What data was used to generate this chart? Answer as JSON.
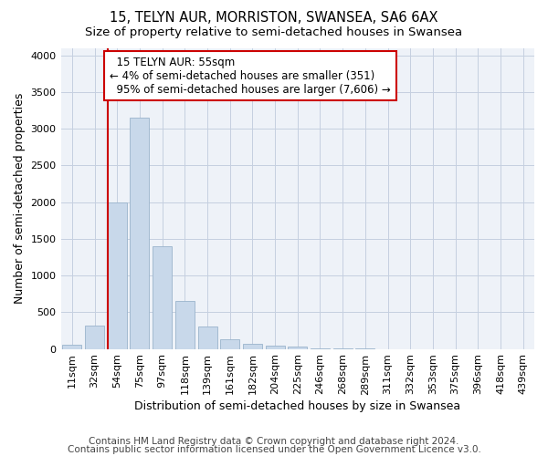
{
  "title": "15, TELYN AUR, MORRISTON, SWANSEA, SA6 6AX",
  "subtitle": "Size of property relative to semi-detached houses in Swansea",
  "xlabel": "Distribution of semi-detached houses by size in Swansea",
  "ylabel": "Number of semi-detached properties",
  "categories": [
    "11sqm",
    "32sqm",
    "54sqm",
    "75sqm",
    "97sqm",
    "118sqm",
    "139sqm",
    "161sqm",
    "182sqm",
    "204sqm",
    "225sqm",
    "246sqm",
    "268sqm",
    "289sqm",
    "311sqm",
    "332sqm",
    "353sqm",
    "375sqm",
    "396sqm",
    "418sqm",
    "439sqm"
  ],
  "values": [
    55,
    320,
    2000,
    3150,
    1400,
    650,
    300,
    130,
    70,
    50,
    30,
    8,
    3,
    1,
    0,
    0,
    0,
    0,
    0,
    0,
    0
  ],
  "bar_color": "#c8d8ea",
  "bar_edgecolor": "#9ab4cc",
  "highlight_bar_index": 2,
  "highlight_label": "15 TELYN AUR: 55sqm",
  "pct_smaller": "4%",
  "n_smaller": "351",
  "pct_larger": "95%",
  "n_larger": "7,606",
  "redline_color": "#cc0000",
  "annotation_box_edgecolor": "#cc0000",
  "ylim": [
    0,
    4100
  ],
  "yticks": [
    0,
    500,
    1000,
    1500,
    2000,
    2500,
    3000,
    3500,
    4000
  ],
  "footer1": "Contains HM Land Registry data © Crown copyright and database right 2024.",
  "footer2": "Contains public sector information licensed under the Open Government Licence v3.0.",
  "background_color": "#eef2f8",
  "grid_color": "#c5cfe0",
  "title_fontsize": 10.5,
  "subtitle_fontsize": 9.5,
  "axis_label_fontsize": 9,
  "tick_fontsize": 8,
  "footer_fontsize": 7.5,
  "ann_fontsize": 8.5
}
